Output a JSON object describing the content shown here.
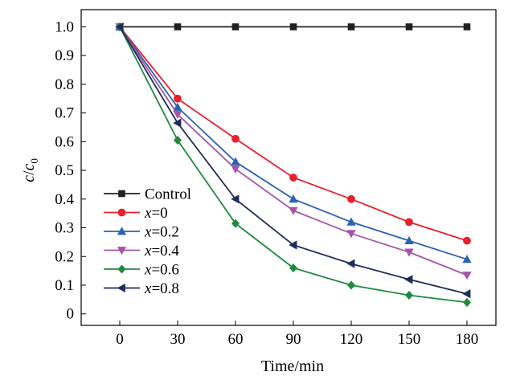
{
  "chart_data": {
    "type": "line",
    "xlabel": "Time/min",
    "ylabel": {
      "main": "c",
      "slash": "/",
      "main2": "c",
      "sub": "0"
    },
    "xlim": [
      -20,
      195
    ],
    "ylim": [
      -0.04,
      1.06
    ],
    "x": [
      0,
      30,
      60,
      90,
      120,
      150,
      180
    ],
    "xticks": [
      "0",
      "30",
      "60",
      "90",
      "120",
      "150",
      "180"
    ],
    "yticks_values": [
      0,
      0.1,
      0.2,
      0.3,
      0.4,
      0.5,
      0.6,
      0.7,
      0.8,
      0.9,
      1.0
    ],
    "yticks": [
      "0",
      "0.1",
      "0.2",
      "0.3",
      "0.4",
      "0.5",
      "0.6",
      "0.7",
      "0.8",
      "0.9",
      "1.0"
    ],
    "legend_position": "bottom-left",
    "grid": false,
    "series": [
      {
        "name": "Control",
        "prefix": "",
        "value_label": "Control",
        "color": "#231f20",
        "marker": "square",
        "values": [
          1.0,
          1.0,
          1.0,
          1.0,
          1.0,
          1.0,
          1.0
        ]
      },
      {
        "name": "x=0",
        "prefix": "x",
        "value_label": "=0",
        "color": "#e8202a",
        "marker": "circle",
        "values": [
          1.0,
          0.75,
          0.61,
          0.475,
          0.4,
          0.32,
          0.255
        ]
      },
      {
        "name": "x=0.2",
        "prefix": "x",
        "value_label": "=0.2",
        "color": "#2a62b5",
        "marker": "triangle-up",
        "values": [
          1.0,
          0.72,
          0.53,
          0.4,
          0.32,
          0.255,
          0.19
        ]
      },
      {
        "name": "x=0.4",
        "prefix": "x",
        "value_label": "=0.4",
        "color": "#a554a8",
        "marker": "triangle-down",
        "values": [
          1.0,
          0.695,
          0.505,
          0.36,
          0.28,
          0.215,
          0.135
        ]
      },
      {
        "name": "x=0.6",
        "prefix": "x",
        "value_label": "=0.6",
        "color": "#1e8a3e",
        "marker": "diamond",
        "values": [
          1.0,
          0.605,
          0.315,
          0.16,
          0.1,
          0.065,
          0.04
        ]
      },
      {
        "name": "x=0.8",
        "prefix": "x",
        "value_label": "=0.8",
        "color": "#1f2d5c",
        "marker": "triangle-left",
        "values": [
          1.0,
          0.665,
          0.4,
          0.24,
          0.175,
          0.12,
          0.07
        ]
      }
    ]
  }
}
